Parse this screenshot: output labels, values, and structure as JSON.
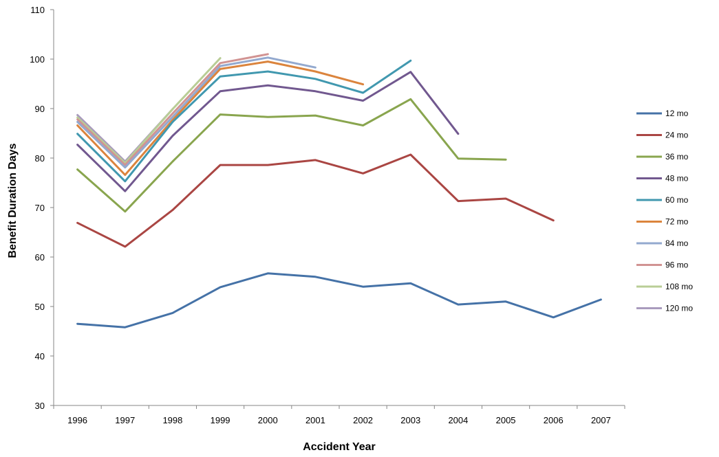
{
  "chart_data": {
    "type": "line",
    "title": "",
    "xlabel": "Accident Year",
    "ylabel": "Benefit Duration Days",
    "categories": [
      "1996",
      "1997",
      "1998",
      "1999",
      "2000",
      "2001",
      "2002",
      "2003",
      "2004",
      "2005",
      "2006",
      "2007"
    ],
    "ylim": [
      30,
      110
    ],
    "yticks": [
      30,
      40,
      50,
      60,
      70,
      80,
      90,
      100,
      110
    ],
    "grid": false,
    "legend_position": "right",
    "series": [
      {
        "name": "12 mo",
        "color": "#4572A7",
        "values": [
          46.5,
          45.8,
          48.7,
          53.9,
          56.7,
          56.0,
          54.0,
          54.7,
          50.4,
          51.0,
          47.8,
          51.4
        ]
      },
      {
        "name": "24 mo",
        "color": "#AA4643",
        "values": [
          66.9,
          62.1,
          69.5,
          78.6,
          78.6,
          79.6,
          76.9,
          80.7,
          71.3,
          71.8,
          67.4,
          null
        ]
      },
      {
        "name": "36 mo",
        "color": "#89A54E",
        "values": [
          77.7,
          69.2,
          79.3,
          88.8,
          88.3,
          88.6,
          86.6,
          91.9,
          79.9,
          79.7,
          null,
          null
        ]
      },
      {
        "name": "48 mo",
        "color": "#71588F",
        "values": [
          82.7,
          73.3,
          84.5,
          93.5,
          94.7,
          93.5,
          91.6,
          97.4,
          84.9,
          null,
          null,
          null
        ]
      },
      {
        "name": "60 mo",
        "color": "#4198AF",
        "values": [
          84.9,
          75.3,
          87.3,
          96.5,
          97.5,
          96.0,
          93.2,
          99.7,
          null,
          null,
          null,
          null
        ]
      },
      {
        "name": "72 mo",
        "color": "#DB843D",
        "values": [
          86.6,
          76.6,
          87.7,
          98.0,
          99.5,
          97.5,
          94.9,
          null,
          null,
          null,
          null,
          null
        ]
      },
      {
        "name": "84 mo",
        "color": "#93A9CF",
        "values": [
          87.3,
          78.1,
          88.3,
          98.6,
          100.3,
          98.3,
          null,
          null,
          null,
          null,
          null,
          null
        ]
      },
      {
        "name": "96 mo",
        "color": "#D19392",
        "values": [
          87.8,
          78.6,
          89.0,
          99.2,
          101.0,
          null,
          null,
          null,
          null,
          null,
          null,
          null
        ]
      },
      {
        "name": "108 mo",
        "color": "#B9CD96",
        "values": [
          88.2,
          79.0,
          89.9,
          100.2,
          null,
          null,
          null,
          null,
          null,
          null,
          null,
          null
        ]
      },
      {
        "name": "120 mo",
        "color": "#A99BBD",
        "values": [
          88.7,
          79.3,
          89.9,
          null,
          null,
          null,
          null,
          null,
          null,
          null,
          null,
          null
        ]
      }
    ]
  }
}
